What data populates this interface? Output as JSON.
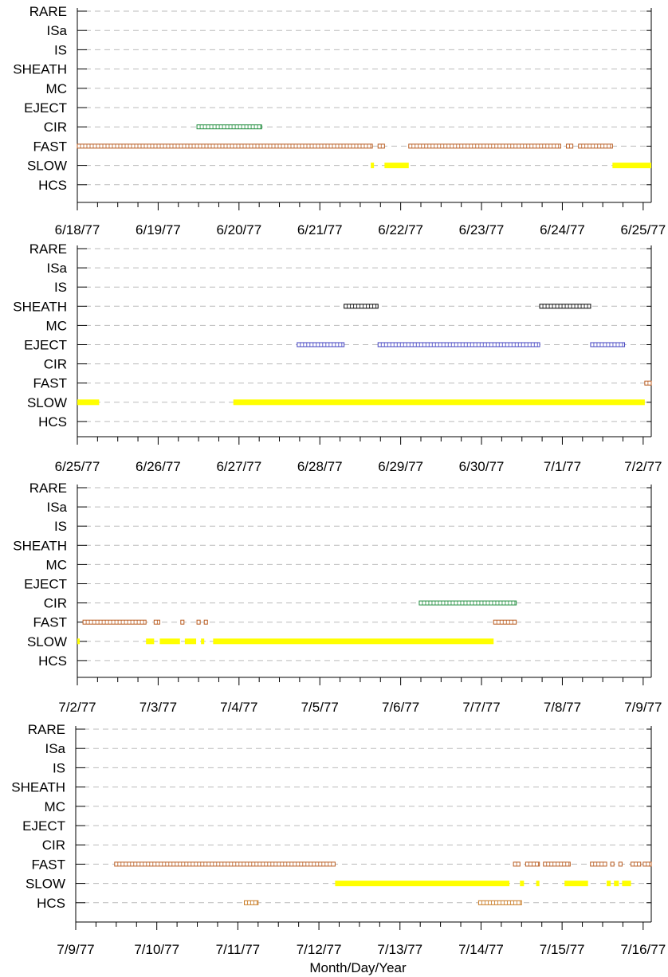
{
  "chart_data": {
    "type": "scatter",
    "xlabel": "Month/Day/Year",
    "categories_y": [
      "RARE",
      "ISa",
      "IS",
      "SHEATH",
      "MC",
      "EJECT",
      "CIR",
      "FAST",
      "SLOW",
      "HCS"
    ],
    "colors": {
      "FAST": "#b85a1e",
      "SLOW": "#ffff00",
      "CIR": "#1e8c3c",
      "EJECT": "#4040c0",
      "SHEATH": "#000000",
      "HCS": "#c87820",
      "grid": "#bbbbbb"
    },
    "panels": [
      {
        "ticks": [
          "6/18/77",
          "6/19/77",
          "6/20/77",
          "6/21/77",
          "6/22/77",
          "6/23/77",
          "6/24/77",
          "6/25/77"
        ],
        "xlim": [
          0,
          7.1
        ],
        "segments": [
          {
            "cat": "CIR",
            "start": 1.48,
            "end": 2.28
          },
          {
            "cat": "FAST",
            "start": 0.0,
            "end": 3.65
          },
          {
            "cat": "FAST",
            "start": 3.72,
            "end": 3.8
          },
          {
            "cat": "FAST",
            "start": 4.1,
            "end": 5.98
          },
          {
            "cat": "FAST",
            "start": 6.05,
            "end": 6.13
          },
          {
            "cat": "FAST",
            "start": 6.2,
            "end": 6.62
          },
          {
            "cat": "SLOW",
            "start": 3.63,
            "end": 3.67
          },
          {
            "cat": "SLOW",
            "start": 3.8,
            "end": 4.1
          },
          {
            "cat": "SLOW",
            "start": 6.62,
            "end": 7.1
          }
        ]
      },
      {
        "ticks": [
          "6/25/77",
          "6/26/77",
          "6/27/77",
          "6/28/77",
          "6/29/77",
          "6/30/77",
          "7/1/77",
          "7/2/77"
        ],
        "xlim": [
          0,
          7.1
        ],
        "segments": [
          {
            "cat": "SHEATH",
            "start": 3.3,
            "end": 3.72
          },
          {
            "cat": "SHEATH",
            "start": 5.72,
            "end": 6.35
          },
          {
            "cat": "EJECT",
            "start": 2.72,
            "end": 3.3
          },
          {
            "cat": "EJECT",
            "start": 3.72,
            "end": 5.72
          },
          {
            "cat": "EJECT",
            "start": 6.35,
            "end": 6.77
          },
          {
            "cat": "FAST",
            "start": 7.02,
            "end": 7.1
          },
          {
            "cat": "SLOW",
            "start": 0.0,
            "end": 0.27
          },
          {
            "cat": "SLOW",
            "start": 1.93,
            "end": 7.02
          }
        ]
      },
      {
        "ticks": [
          "7/2/77",
          "7/3/77",
          "7/4/77",
          "7/5/77",
          "7/6/77",
          "7/7/77",
          "7/8/77",
          "7/9/77"
        ],
        "xlim": [
          0,
          7.1
        ],
        "segments": [
          {
            "cat": "CIR",
            "start": 4.23,
            "end": 5.43
          },
          {
            "cat": "FAST",
            "start": 0.07,
            "end": 0.85
          },
          {
            "cat": "FAST",
            "start": 0.95,
            "end": 1.02
          },
          {
            "cat": "FAST",
            "start": 1.28,
            "end": 1.31
          },
          {
            "cat": "FAST",
            "start": 1.48,
            "end": 1.52
          },
          {
            "cat": "FAST",
            "start": 1.57,
            "end": 1.61
          },
          {
            "cat": "FAST",
            "start": 5.15,
            "end": 5.43
          },
          {
            "cat": "SLOW",
            "start": 0.0,
            "end": 0.02
          },
          {
            "cat": "SLOW",
            "start": 0.85,
            "end": 0.95
          },
          {
            "cat": "SLOW",
            "start": 1.02,
            "end": 1.27
          },
          {
            "cat": "SLOW",
            "start": 1.33,
            "end": 1.47
          },
          {
            "cat": "SLOW",
            "start": 1.53,
            "end": 1.57
          },
          {
            "cat": "SLOW",
            "start": 1.68,
            "end": 5.15
          }
        ]
      },
      {
        "ticks": [
          "7/9/77",
          "7/10/77",
          "7/11/77",
          "7/12/77",
          "7/13/77",
          "7/14/77",
          "7/15/77",
          "7/16/77"
        ],
        "xlim": [
          0,
          7.1
        ],
        "segments": [
          {
            "cat": "FAST",
            "start": 0.48,
            "end": 3.2
          },
          {
            "cat": "FAST",
            "start": 5.4,
            "end": 5.48
          },
          {
            "cat": "FAST",
            "start": 5.55,
            "end": 5.72
          },
          {
            "cat": "FAST",
            "start": 5.77,
            "end": 6.1
          },
          {
            "cat": "FAST",
            "start": 6.35,
            "end": 6.55
          },
          {
            "cat": "FAST",
            "start": 6.6,
            "end": 6.64
          },
          {
            "cat": "FAST",
            "start": 6.7,
            "end": 6.74
          },
          {
            "cat": "FAST",
            "start": 6.85,
            "end": 6.97
          },
          {
            "cat": "FAST",
            "start": 7.0,
            "end": 7.1
          },
          {
            "cat": "SLOW",
            "start": 3.2,
            "end": 5.35
          },
          {
            "cat": "SLOW",
            "start": 5.48,
            "end": 5.53
          },
          {
            "cat": "SLOW",
            "start": 5.68,
            "end": 5.72
          },
          {
            "cat": "SLOW",
            "start": 6.03,
            "end": 6.32
          },
          {
            "cat": "SLOW",
            "start": 6.55,
            "end": 6.6
          },
          {
            "cat": "SLOW",
            "start": 6.64,
            "end": 6.7
          },
          {
            "cat": "SLOW",
            "start": 6.74,
            "end": 6.85
          },
          {
            "cat": "HCS",
            "start": 2.08,
            "end": 2.25
          },
          {
            "cat": "HCS",
            "start": 4.97,
            "end": 5.5
          }
        ]
      }
    ]
  }
}
